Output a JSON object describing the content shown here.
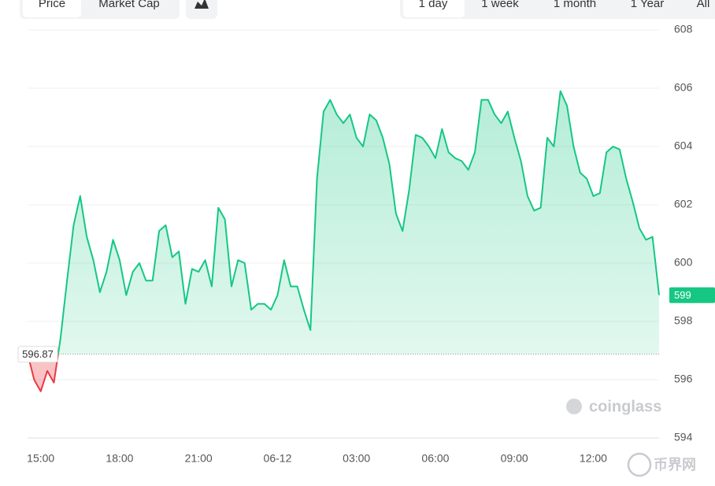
{
  "controls": {
    "views": [
      "Price",
      "Market Cap"
    ],
    "ranges": [
      "1 day",
      "1 week",
      "1 month",
      "1 Year",
      "All"
    ]
  },
  "watermark": "coinglass",
  "corner_logo": "币界网",
  "chart_data": {
    "type": "line",
    "categories": [
      null,
      null,
      "15:00",
      null,
      null,
      null,
      null,
      null,
      null,
      null,
      null,
      null,
      null,
      null,
      "18:00",
      null,
      null,
      null,
      null,
      null,
      null,
      null,
      null,
      null,
      null,
      null,
      "21:00",
      null,
      null,
      null,
      null,
      null,
      null,
      null,
      null,
      null,
      null,
      null,
      "06-12",
      null,
      null,
      null,
      null,
      null,
      null,
      null,
      null,
      null,
      null,
      null,
      "03:00",
      null,
      null,
      null,
      null,
      null,
      null,
      null,
      null,
      null,
      null,
      null,
      "06:00",
      null,
      null,
      null,
      null,
      null,
      null,
      null,
      null,
      null,
      null,
      null,
      "09:00",
      null,
      null,
      null,
      null,
      null,
      null,
      null,
      null,
      null,
      null,
      null,
      "12:00",
      null,
      null,
      null,
      null,
      null,
      null,
      null,
      null,
      null,
      null
    ],
    "values": [
      596.9,
      596.0,
      595.6,
      596.3,
      595.9,
      597.4,
      599.4,
      601.3,
      602.3,
      600.9,
      600.1,
      599.0,
      599.7,
      600.8,
      600.1,
      598.9,
      599.7,
      600.0,
      599.4,
      599.4,
      601.1,
      601.3,
      600.2,
      600.4,
      598.6,
      599.8,
      599.7,
      600.1,
      599.2,
      601.9,
      601.5,
      599.2,
      600.1,
      600.0,
      598.4,
      598.6,
      598.6,
      598.4,
      598.9,
      600.1,
      599.2,
      599.2,
      598.4,
      597.7,
      602.9,
      605.2,
      605.6,
      605.1,
      604.8,
      605.1,
      604.3,
      604.0,
      605.1,
      604.9,
      604.3,
      603.4,
      601.7,
      601.1,
      602.5,
      604.4,
      604.3,
      604.0,
      603.6,
      604.6,
      603.8,
      603.6,
      603.5,
      603.2,
      603.8,
      605.6,
      605.6,
      605.1,
      604.8,
      605.2,
      604.3,
      603.5,
      602.3,
      601.8,
      601.9,
      604.3,
      604.0,
      605.9,
      605.4,
      604.0,
      603.1,
      602.9,
      602.3,
      602.4,
      603.8,
      604.0,
      603.9,
      602.9,
      602.1,
      601.2,
      600.8,
      600.9,
      598.9
    ],
    "last_value_label": "599",
    "baseline": 596.87,
    "up_color": "#16c784",
    "down_color": "#ea3943",
    "ylim": [
      594,
      608
    ],
    "yticks": [
      594,
      596,
      598,
      600,
      602,
      604,
      606,
      608
    ],
    "grid": true
  }
}
